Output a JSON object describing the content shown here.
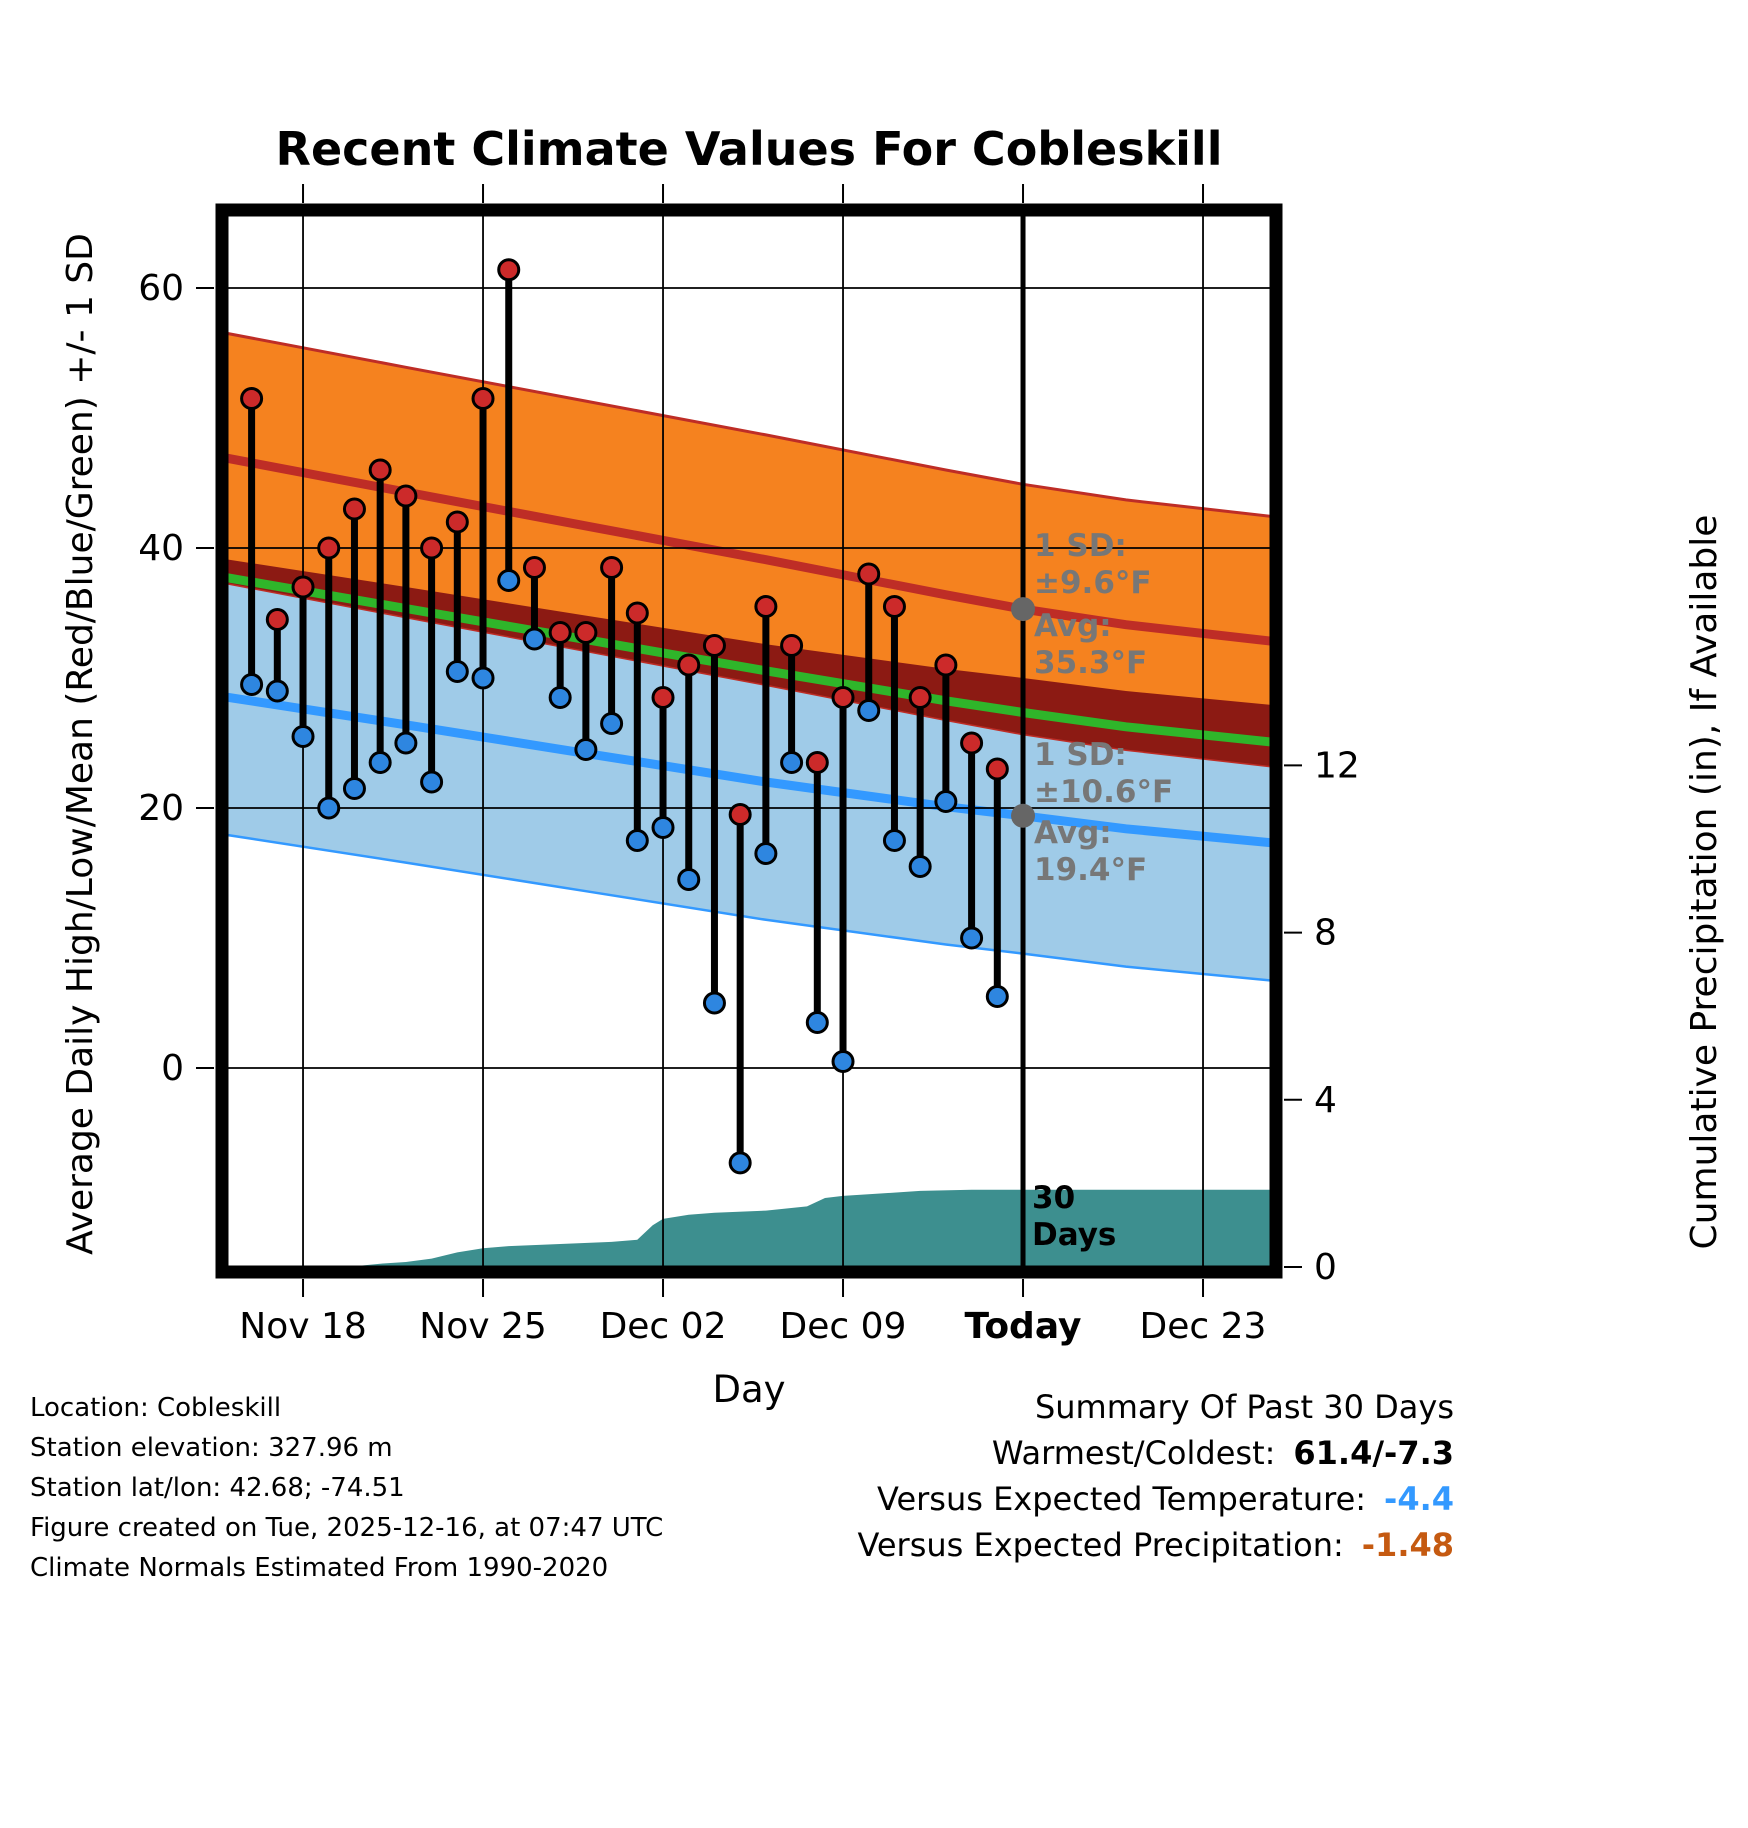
{
  "colors": {
    "high_band": "#F5821F",
    "high_line": "#BE2D26",
    "low_band": "#9FCBE8",
    "low_line": "#3399FF",
    "overlap_band": "#8C1A13",
    "mean_line": "#2FB52A",
    "precip_fill": "#3D8F8F",
    "point_high": "#CC2A2A",
    "point_low": "#2E86E0",
    "avg_marker": "#666666",
    "annotation_gray": "#777777",
    "summary_temp": "#3399FF",
    "summary_precip": "#C55A11"
  },
  "chart_data": {
    "type": "line",
    "title": "Recent Climate Values For Cobleskill",
    "xlabel": "Day",
    "ylabel_left": "Average Daily High/Low/Mean (Red/Blue/Green) +/- 1 SD",
    "ylabel_right": "Cumulative Precipitation (in), If Available",
    "x_ticks": [
      {
        "label": "Nov 18",
        "day": 2,
        "bold": false
      },
      {
        "label": "Nov 25",
        "day": 9,
        "bold": false
      },
      {
        "label": "Dec 02",
        "day": 16,
        "bold": false
      },
      {
        "label": "Dec 09",
        "day": 23,
        "bold": false
      },
      {
        "label": "Today",
        "day": 30,
        "bold": true
      },
      {
        "label": "Dec 23",
        "day": 37,
        "bold": false
      }
    ],
    "y_left_ticks": [
      0,
      20,
      40,
      60
    ],
    "y_right_ticks": [
      0,
      4,
      8,
      12
    ],
    "today_day": 30,
    "today_avg_high_f": 35.3,
    "today_avg_low_f": 19.4,
    "daily": {
      "dates": [
        "Nov 16",
        "Nov 17",
        "Nov 18",
        "Nov 19",
        "Nov 20",
        "Nov 21",
        "Nov 22",
        "Nov 23",
        "Nov 24",
        "Nov 25",
        "Nov 26",
        "Nov 27",
        "Nov 28",
        "Nov 29",
        "Nov 30",
        "Dec 01",
        "Dec 02",
        "Dec 03",
        "Dec 04",
        "Dec 05",
        "Dec 06",
        "Dec 07",
        "Dec 08",
        "Dec 09",
        "Dec 10",
        "Dec 11",
        "Dec 12",
        "Dec 13",
        "Dec 14",
        "Dec 15"
      ],
      "high_f": [
        51.5,
        34.5,
        37,
        40,
        43,
        46,
        44,
        40,
        42,
        51.5,
        61.4,
        38.5,
        33.5,
        33.5,
        38.5,
        35,
        28.5,
        31,
        32.5,
        19.5,
        35.5,
        32.5,
        23.5,
        28.5,
        38,
        35.5,
        28.5,
        31,
        25,
        23
      ],
      "low_f": [
        29.5,
        29,
        25.5,
        20,
        21.5,
        23.5,
        25,
        22,
        30.5,
        30,
        37.5,
        33,
        28.5,
        24.5,
        26.5,
        17.5,
        18.5,
        14.5,
        5,
        -7.3,
        16.5,
        23.5,
        3.5,
        0.5,
        27.5,
        17.5,
        15.5,
        20.5,
        10,
        5.5
      ]
    },
    "normals": {
      "sample_days": [
        -1.2,
        6,
        13,
        20,
        27,
        30,
        34,
        39.8
      ],
      "avg_high_f": [
        47.0,
        44.3,
        41.7,
        39.1,
        36.4,
        35.3,
        34.1,
        32.8
      ],
      "avg_low_f": [
        28.6,
        26.4,
        24.2,
        22.0,
        20.1,
        19.4,
        18.4,
        17.3
      ],
      "high_sd_f": 9.6,
      "low_sd_f": 10.6
    },
    "precip": {
      "sample_days": [
        -1.2,
        3,
        4,
        5,
        6,
        7,
        8,
        9,
        10,
        12,
        14,
        15,
        15.6,
        16,
        17,
        18,
        20,
        21.6,
        22.3,
        23,
        25,
        26,
        28,
        39.8
      ],
      "cumulative_in": [
        0,
        0,
        0.02,
        0.08,
        0.12,
        0.2,
        0.35,
        0.45,
        0.5,
        0.55,
        0.6,
        0.65,
        1.0,
        1.15,
        1.25,
        1.3,
        1.35,
        1.45,
        1.65,
        1.7,
        1.78,
        1.82,
        1.85,
        1.85
      ]
    },
    "annotations": {
      "high_sd": {
        "line1": "1 SD:",
        "line2": "±9.6°F"
      },
      "high_avg": {
        "line1": "Avg:",
        "line2": "35.3°F"
      },
      "low_sd": {
        "line1": "1 SD:",
        "line2": "±10.6°F"
      },
      "low_avg": {
        "line1": "Avg:",
        "line2": "19.4°F"
      },
      "period": {
        "line1": "30",
        "line2": "Days"
      }
    }
  },
  "station_info": {
    "location": "Location: Cobleskill",
    "elevation": "Station elevation: 327.96 m",
    "latlon": "Station lat/lon: 42.68; -74.51",
    "created": "Figure created on Tue, 2025-12-16, at 07:47 UTC",
    "normals": "Climate Normals Estimated From 1990-2020"
  },
  "summary": {
    "title": "Summary Of Past 30 Days",
    "rows": [
      {
        "label": "Warmest/Coldest:",
        "value": "61.4/-7.3",
        "color": "#000000"
      },
      {
        "label": "Versus Expected Temperature:",
        "value": "-4.4",
        "color": "#3399FF"
      },
      {
        "label": "Versus Expected Precipitation:",
        "value": "-1.48",
        "color": "#C55A11"
      }
    ]
  }
}
